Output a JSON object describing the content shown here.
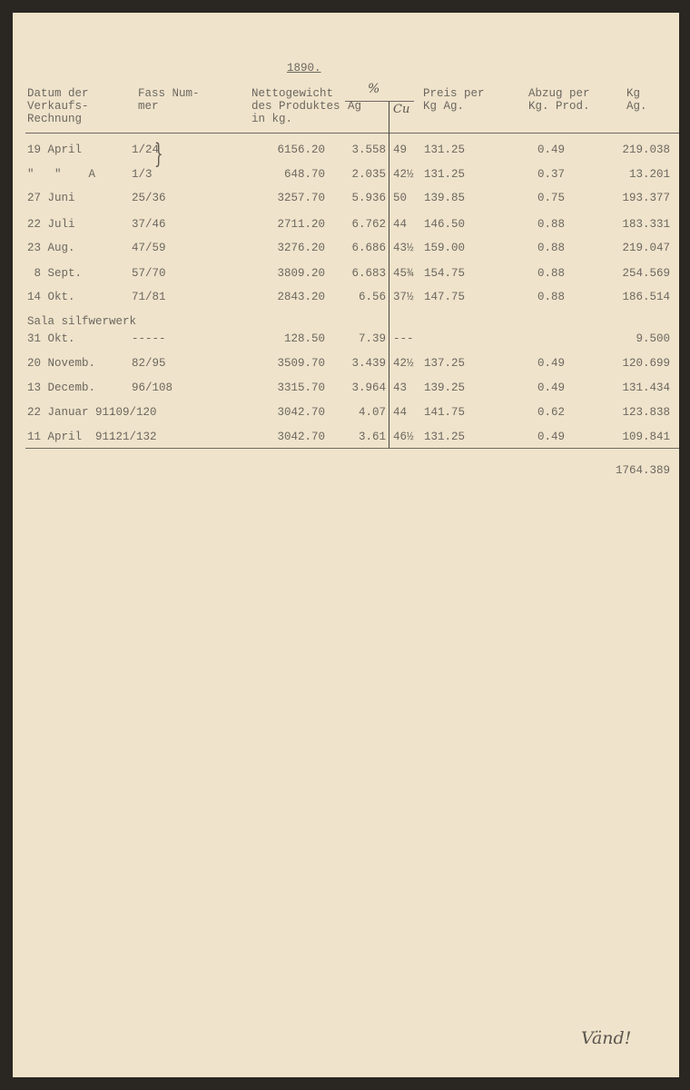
{
  "year": "1890.",
  "headers": {
    "datum": [
      "Datum der",
      "Verkaufs-",
      "Rechnung"
    ],
    "fass": [
      "Fass Num-",
      "mer"
    ],
    "netto": [
      "Nettogewicht",
      "des Produktes",
      "in kg."
    ],
    "percent": "%",
    "ag": "Ag",
    "cu": "Cu",
    "preis": [
      "Preis per",
      "Kg Ag."
    ],
    "abzug": [
      "Abzug per",
      "Kg. Prod."
    ],
    "kg": [
      "Kg",
      "Ag."
    ]
  },
  "rows": [
    {
      "datum": "19 April",
      "fass": "1/24",
      "netto": "6156.20",
      "ag": "3.558",
      "cu": "49",
      "preis": "131.25",
      "abzug": "0.49",
      "kg": "219.038"
    },
    {
      "datum": "\"   \"    A",
      "fass": "1/3",
      "netto": "648.70",
      "ag": "2.035",
      "cu": "42½",
      "preis": "131.25",
      "abzug": "0.37",
      "kg": "13.201"
    },
    {
      "datum": "27 Juni",
      "fass": "25/36",
      "netto": "3257.70",
      "ag": "5.936",
      "cu": "50",
      "preis": "139.85",
      "abzug": "0.75",
      "kg": "193.377"
    },
    {
      "datum": "22 Juli",
      "fass": "37/46",
      "netto": "2711.20",
      "ag": "6.762",
      "cu": "44",
      "preis": "146.50",
      "abzug": "0.88",
      "kg": "183.331"
    },
    {
      "datum": "23 Aug.",
      "fass": "47/59",
      "netto": "3276.20",
      "ag": "6.686",
      "cu": "43½",
      "preis": "159.00",
      "abzug": "0.88",
      "kg": "219.047"
    },
    {
      "datum": " 8 Sept.",
      "fass": "57/70",
      "netto": "3809.20",
      "ag": "6.683",
      "cu": "45¾",
      "preis": "154.75",
      "abzug": "0.88",
      "kg": "254.569"
    },
    {
      "datum": "14 Okt.",
      "fass": "71/81",
      "netto": "2843.20",
      "ag": "6.56",
      "cu": "37½",
      "preis": "147.75",
      "abzug": "0.88",
      "kg": "186.514"
    },
    {
      "datum": "31 Okt.",
      "fass": "-----",
      "netto": "128.50",
      "ag": "7.39",
      "cu": "---",
      "preis": "",
      "abzug": "",
      "kg": "9.500"
    },
    {
      "datum": "20 Novemb.",
      "fass": "82/95",
      "netto": "3509.70",
      "ag": "3.439",
      "cu": "42½",
      "preis": "137.25",
      "abzug": "0.49",
      "kg": "120.699"
    },
    {
      "datum": "13 Decemb.",
      "fass": "96/108",
      "netto": "3315.70",
      "ag": "3.964",
      "cu": "43",
      "preis": "139.25",
      "abzug": "0.49",
      "kg": "131.434"
    },
    {
      "datum": "22 Januar 91.",
      "fass": "109/120",
      "netto": "3042.70",
      "ag": "4.07",
      "cu": "44",
      "preis": "141.75",
      "abzug": "0.62",
      "kg": "123.838"
    },
    {
      "datum": "11 April  91.",
      "fass": "121/132",
      "netto": "3042.70",
      "ag": "3.61",
      "cu": "46½",
      "preis": "131.25",
      "abzug": "0.49",
      "kg": "109.841"
    }
  ],
  "sala_label": "Sala silfwerwerk",
  "total": "1764.389",
  "note": "Vänd!"
}
